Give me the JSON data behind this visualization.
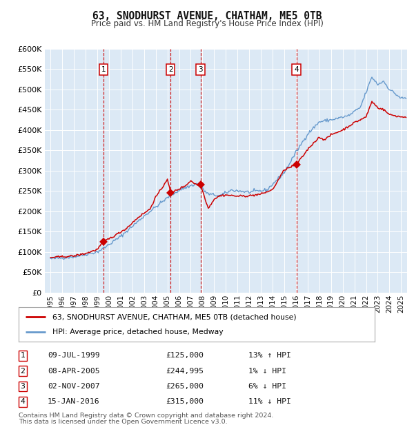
{
  "title": "63, SNODHURST AVENUE, CHATHAM, ME5 0TB",
  "subtitle": "Price paid vs. HM Land Registry's House Price Index (HPI)",
  "legend_label_red": "63, SNODHURST AVENUE, CHATHAM, ME5 0TB (detached house)",
  "legend_label_blue": "HPI: Average price, detached house, Medway",
  "footer_line1": "Contains HM Land Registry data © Crown copyright and database right 2024.",
  "footer_line2": "This data is licensed under the Open Government Licence v3.0.",
  "sale_points": [
    {
      "label": "1",
      "date": "09-JUL-1999",
      "price": 125000,
      "hpi_pct": "13% ↑ HPI",
      "x_year": 1999.52
    },
    {
      "label": "2",
      "date": "08-APR-2005",
      "price": 244995,
      "hpi_pct": "1% ↓ HPI",
      "x_year": 2005.27
    },
    {
      "label": "3",
      "date": "02-NOV-2007",
      "price": 265000,
      "hpi_pct": "6% ↓ HPI",
      "x_year": 2007.84
    },
    {
      "label": "4",
      "date": "15-JAN-2016",
      "price": 315000,
      "hpi_pct": "11% ↓ HPI",
      "x_year": 2016.04
    }
  ],
  "plot_bg_color": "#dce9f5",
  "red_line_color": "#cc0000",
  "blue_line_color": "#6699cc",
  "vline_color": "#cc0000",
  "ylim": [
    0,
    600000
  ],
  "yticks": [
    0,
    50000,
    100000,
    150000,
    200000,
    250000,
    300000,
    350000,
    400000,
    450000,
    500000,
    550000,
    600000
  ],
  "xlim_start": 1994.5,
  "xlim_end": 2025.5,
  "xtick_years": [
    1995,
    1996,
    1997,
    1998,
    1999,
    2000,
    2001,
    2002,
    2003,
    2004,
    2005,
    2006,
    2007,
    2008,
    2009,
    2010,
    2011,
    2012,
    2013,
    2014,
    2015,
    2016,
    2017,
    2018,
    2019,
    2020,
    2021,
    2022,
    2023,
    2024,
    2025
  ]
}
